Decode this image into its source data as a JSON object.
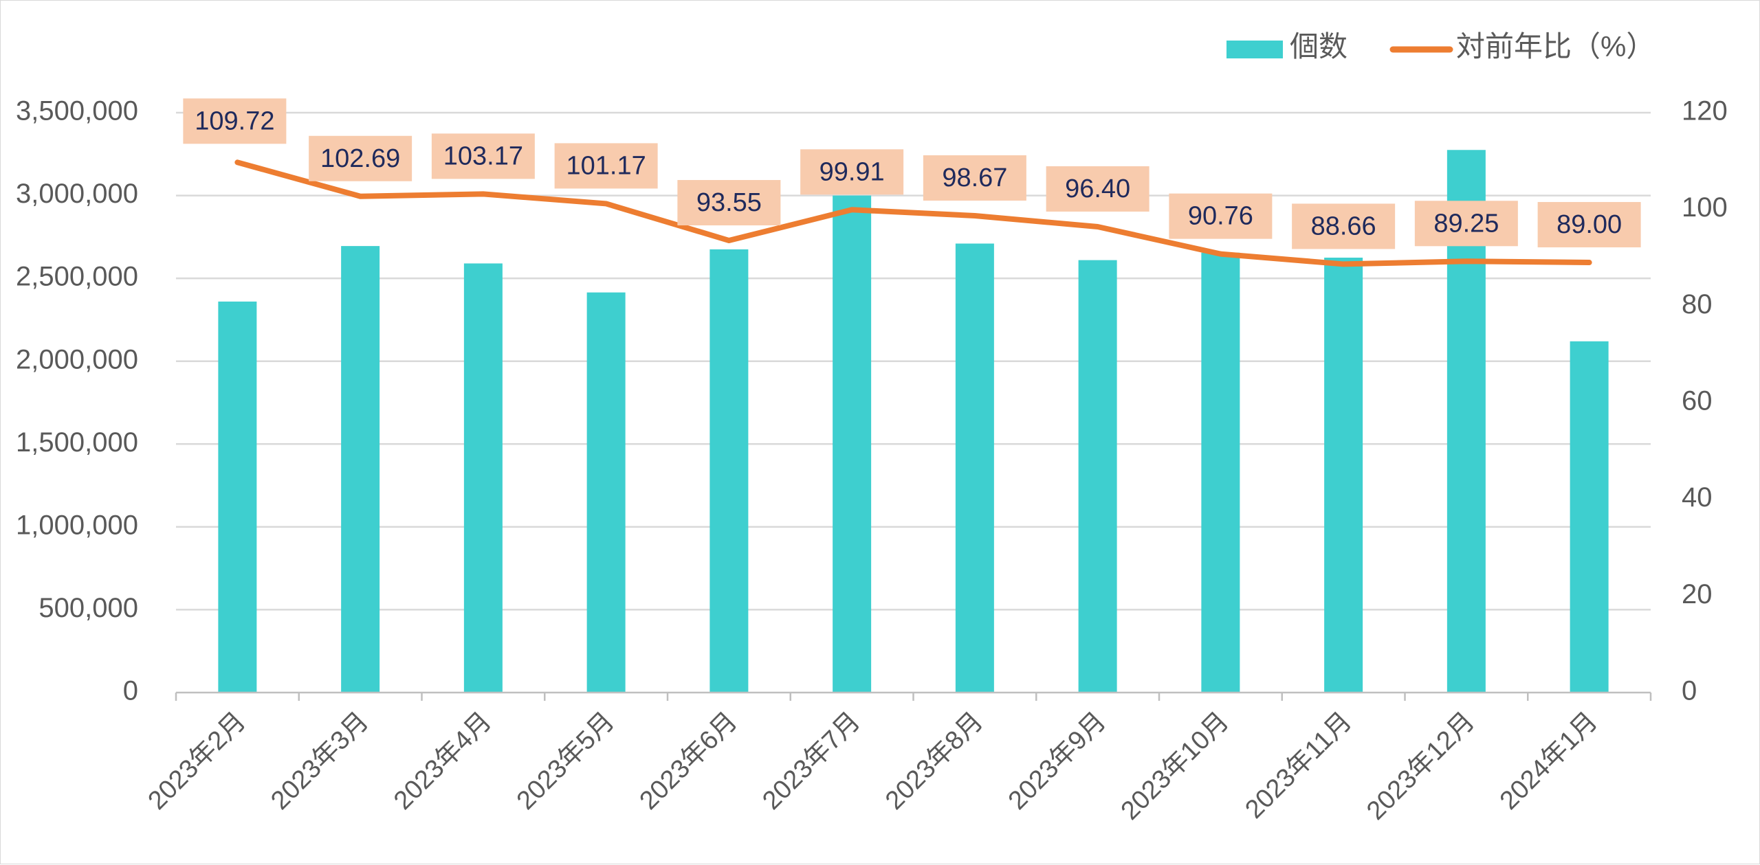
{
  "chart_data": {
    "type": "bar",
    "categories": [
      "2023年2月",
      "2023年3月",
      "2023年4月",
      "2023年5月",
      "2023年6月",
      "2023年7月",
      "2023年8月",
      "2023年9月",
      "2023年10月",
      "2023年11月",
      "2023年12月",
      "2024年1月"
    ],
    "series": [
      {
        "name": "個数",
        "type": "bar",
        "axis": "left",
        "color": "#3ecfcf",
        "values": [
          2360000,
          2695000,
          2590000,
          2415000,
          2675000,
          3000000,
          2710000,
          2610000,
          2655000,
          2625000,
          3275000,
          2120000
        ]
      },
      {
        "name": "対前年比（%）",
        "type": "line",
        "axis": "right",
        "color": "#ed7d31",
        "values": [
          109.72,
          102.69,
          103.17,
          101.17,
          93.55,
          99.91,
          98.67,
          96.4,
          90.76,
          88.66,
          89.25,
          89.0
        ],
        "labels": [
          "109.72",
          "102.69",
          "103.17",
          "101.17",
          "93.55",
          "99.91",
          "98.67",
          "96.40",
          "90.76",
          "88.66",
          "89.25",
          "89.00"
        ],
        "label_box_color": "#f8cbad"
      }
    ],
    "y_left": {
      "ylim": [
        0,
        3500000
      ],
      "ticks": [
        0,
        500000,
        1000000,
        1500000,
        2000000,
        2500000,
        3000000,
        3500000
      ],
      "tick_labels": [
        "0",
        "500,000",
        "1,000,000",
        "1,500,000",
        "2,000,000",
        "2,500,000",
        "3,000,000",
        "3,500,000"
      ]
    },
    "y_right": {
      "ylim": [
        0,
        120
      ],
      "ticks": [
        0,
        20,
        40,
        60,
        80,
        100,
        120
      ],
      "tick_labels": [
        "0",
        "20",
        "40",
        "60",
        "80",
        "100",
        "120"
      ]
    },
    "grid": true,
    "legend_position": "top-right",
    "gridline_color": "#d9d9d9"
  }
}
